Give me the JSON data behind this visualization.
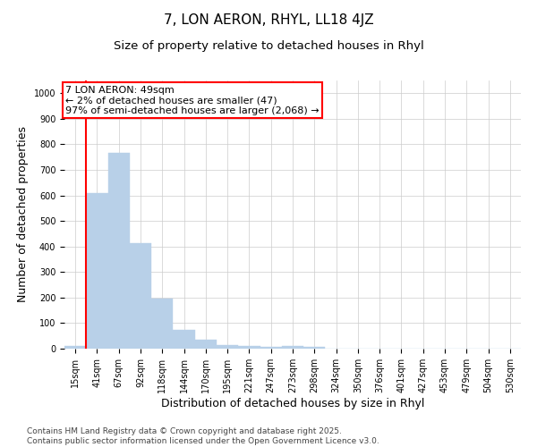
{
  "title": "7, LON AERON, RHYL, LL18 4JZ",
  "subtitle": "Size of property relative to detached houses in Rhyl",
  "xlabel": "Distribution of detached houses by size in Rhyl",
  "ylabel": "Number of detached properties",
  "categories": [
    "15sqm",
    "41sqm",
    "67sqm",
    "92sqm",
    "118sqm",
    "144sqm",
    "170sqm",
    "195sqm",
    "221sqm",
    "247sqm",
    "273sqm",
    "298sqm",
    "324sqm",
    "350sqm",
    "376sqm",
    "401sqm",
    "427sqm",
    "453sqm",
    "479sqm",
    "504sqm",
    "530sqm"
  ],
  "values": [
    12,
    608,
    768,
    413,
    195,
    75,
    35,
    15,
    12,
    8,
    10,
    8,
    0,
    0,
    0,
    0,
    0,
    0,
    0,
    0,
    0
  ],
  "bar_color": "#b8d0e8",
  "bar_edgecolor": "#b8d0e8",
  "redline_index": 1,
  "annotation_line1": "7 LON AERON: 49sqm",
  "annotation_line2": "← 2% of detached houses are smaller (47)",
  "annotation_line3": "97% of semi-detached houses are larger (2,068) →",
  "ylim": [
    0,
    1050
  ],
  "yticks": [
    0,
    100,
    200,
    300,
    400,
    500,
    600,
    700,
    800,
    900,
    1000
  ],
  "footer_line1": "Contains HM Land Registry data © Crown copyright and database right 2025.",
  "footer_line2": "Contains public sector information licensed under the Open Government Licence v3.0.",
  "title_fontsize": 11,
  "subtitle_fontsize": 9.5,
  "axis_label_fontsize": 9,
  "tick_fontsize": 7,
  "annotation_fontsize": 8,
  "footer_fontsize": 6.5,
  "background_color": "#ffffff",
  "grid_color": "#cccccc"
}
